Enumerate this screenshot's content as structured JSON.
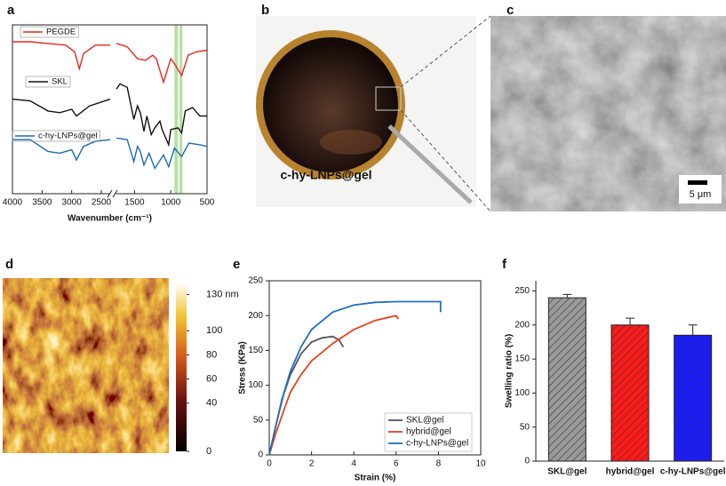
{
  "chart_data": [
    {
      "type": "spectra",
      "panel": "a",
      "xlabel": "Wavenumber (cm⁻¹)",
      "x_segments": [
        [
          4000,
          2350
        ],
        [
          1750,
          500
        ]
      ],
      "xticks": [
        4000,
        3500,
        3000,
        2500,
        1500,
        1000,
        500
      ],
      "ylim": [
        0,
        10
      ],
      "bands": [
        [
          950,
          900
        ],
        [
          880,
          840
        ]
      ],
      "band_color": "#b8e0a6",
      "series": [
        {
          "name": "PEGDE",
          "color": "#e8261c",
          "x": [
            4000,
            3700,
            3400,
            3100,
            2950,
            2870,
            2800,
            2600,
            2350,
            2000,
            1750,
            1600,
            1460,
            1350,
            1250,
            1200,
            1100,
            1000,
            950,
            850,
            760,
            650,
            500
          ],
          "values": [
            9.0,
            9.0,
            8.9,
            8.8,
            8.4,
            7.4,
            8.3,
            8.8,
            8.8,
            null,
            8.9,
            8.7,
            8.0,
            7.9,
            8.2,
            8.0,
            6.6,
            8.0,
            7.7,
            7.0,
            8.2,
            8.4,
            8.5
          ]
        },
        {
          "name": "SKL",
          "color": "#111111",
          "x": [
            4000,
            3700,
            3400,
            3200,
            3000,
            2920,
            2700,
            2350,
            2000,
            1750,
            1700,
            1600,
            1510,
            1460,
            1420,
            1370,
            1330,
            1270,
            1220,
            1150,
            1120,
            1030,
            1000,
            900,
            850,
            800,
            700,
            600,
            500
          ],
          "values": [
            5.6,
            5.5,
            4.9,
            4.8,
            5.0,
            4.6,
            5.2,
            5.6,
            null,
            6.2,
            6.5,
            6.3,
            4.4,
            5.2,
            4.8,
            3.7,
            4.6,
            3.5,
            3.9,
            4.3,
            3.8,
            2.9,
            3.8,
            3.9,
            3.6,
            4.9,
            5.1,
            4.6,
            4.6
          ]
        },
        {
          "name": "c-hy-LNPs@gel",
          "color": "#1b6ab5",
          "x": [
            4000,
            3700,
            3400,
            3200,
            3000,
            2920,
            2800,
            2600,
            2350,
            2000,
            1750,
            1600,
            1510,
            1460,
            1420,
            1370,
            1300,
            1220,
            1100,
            1030,
            950,
            850,
            750,
            600,
            500
          ],
          "values": [
            3.2,
            3.2,
            2.5,
            2.4,
            2.6,
            2.0,
            2.8,
            3.1,
            3.2,
            null,
            3.3,
            3.2,
            1.9,
            2.8,
            2.5,
            1.7,
            2.4,
            1.5,
            2.3,
            1.6,
            2.7,
            2.2,
            3.0,
            2.9,
            2.8
          ]
        }
      ]
    },
    {
      "type": "image",
      "panel": "d",
      "colorbar_lim": [
        0,
        140
      ],
      "colorbar_ticks": [
        0,
        40,
        60,
        80,
        100,
        {
          "value": 130,
          "label": "130 nm"
        }
      ]
    },
    {
      "type": "line",
      "panel": "e",
      "xlabel": "Strain (%)",
      "ylabel": "Stress (KPa)",
      "xlim": [
        0,
        10
      ],
      "xticks": [
        0,
        2,
        4,
        6,
        8,
        10
      ],
      "ylim": [
        0,
        250
      ],
      "yticks": [
        0,
        50,
        100,
        150,
        200,
        250
      ],
      "legend": "lower right",
      "series": [
        {
          "name": "SKL@gel",
          "color": "#555555",
          "x": [
            0,
            0.3,
            0.6,
            1,
            1.5,
            2,
            2.5,
            3,
            3.3,
            3.5
          ],
          "values": [
            0,
            40,
            80,
            115,
            145,
            162,
            168,
            170,
            165,
            155
          ]
        },
        {
          "name": "hybrid@gel",
          "color": "#e8401c",
          "x": [
            0,
            0.3,
            0.7,
            1,
            1.5,
            2,
            3,
            4,
            5,
            6,
            6.1
          ],
          "values": [
            0,
            30,
            65,
            90,
            115,
            135,
            160,
            180,
            193,
            200,
            195
          ]
        },
        {
          "name": "c-hy-LNPs@gel",
          "color": "#1f6fc2",
          "x": [
            0,
            0.3,
            0.7,
            1,
            1.5,
            2,
            3,
            4,
            5,
            6,
            7,
            8.1,
            8.1
          ],
          "values": [
            0,
            40,
            90,
            120,
            155,
            180,
            205,
            215,
            219,
            220,
            220,
            220,
            205
          ]
        }
      ]
    },
    {
      "type": "bar",
      "panel": "f",
      "ylabel": "Swelling ratio (%)",
      "categories": [
        "SKL@gel",
        "hybrid@gel",
        "c-hy-LNPs@gel"
      ],
      "values": [
        240,
        200,
        185
      ],
      "errors": [
        5,
        10,
        15
      ],
      "colors": [
        "#9a9a9a",
        "#ff1a1a",
        "#1a1aff"
      ],
      "ylim": [
        0,
        265
      ],
      "yticks": [
        0,
        50,
        100,
        150,
        200,
        250
      ]
    }
  ],
  "photo": {
    "panel": "b",
    "label": "c-hy-LNPs@gel"
  },
  "sem": {
    "panel": "c",
    "scale_bar": "5 μm"
  }
}
